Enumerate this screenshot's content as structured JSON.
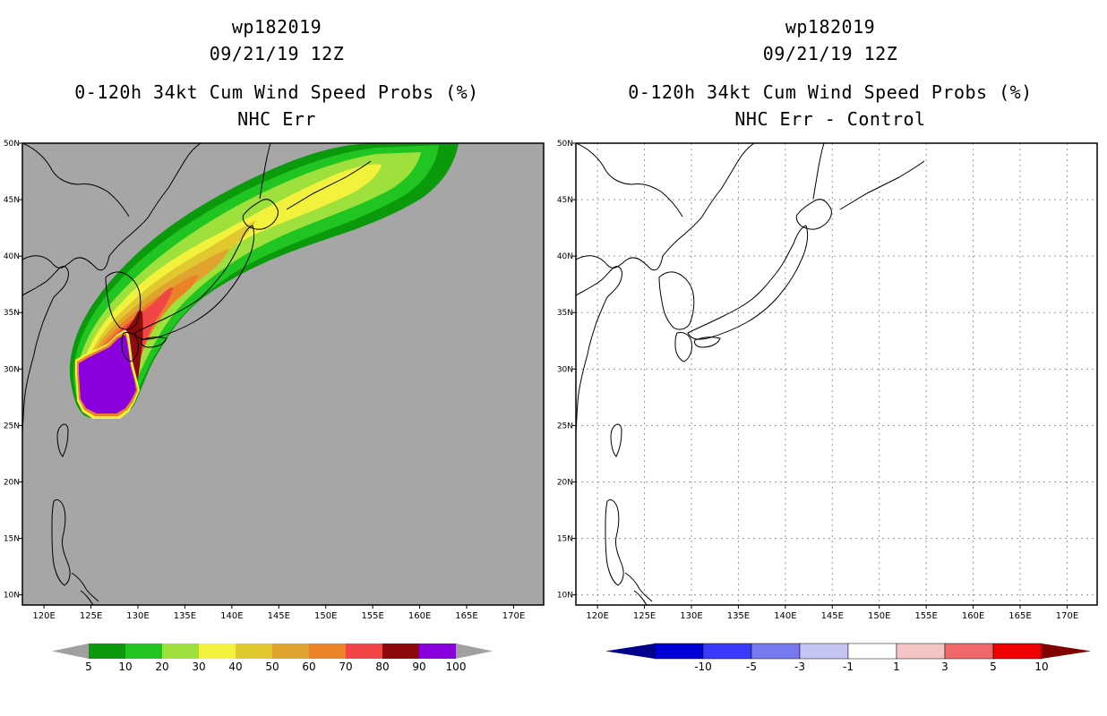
{
  "left": {
    "storm_id": "wp182019",
    "datetime": "09/21/19 12Z",
    "product": "0-120h 34kt Cum Wind Speed Probs (%)",
    "subtitle": "NHC Err",
    "background": "#a6a6a6",
    "colorbar": {
      "labels": [
        "5",
        "10",
        "20",
        "30",
        "40",
        "50",
        "60",
        "70",
        "80",
        "90",
        "100"
      ],
      "colors": [
        "#0b9a0b",
        "#21c521",
        "#9ee03c",
        "#f2f23c",
        "#e0c82e",
        "#e0a42e",
        "#ec8228",
        "#f04646",
        "#8c0a0a",
        "#8a00dc"
      ],
      "end_color": "#a0a0a0"
    }
  },
  "right": {
    "storm_id": "wp182019",
    "datetime": "09/21/19 12Z",
    "product": "0-120h 34kt Cum Wind Speed Probs (%)",
    "subtitle": "NHC Err - Control",
    "background": "#ffffff",
    "colorbar": {
      "labels": [
        "-10",
        "-5",
        "-3",
        "-1",
        "1",
        "3",
        "5",
        "10"
      ],
      "colors": [
        "#0000d8",
        "#3a3aff",
        "#7878ee",
        "#c4c4f6",
        "#ffffff",
        "#f6c4c4",
        "#f06868",
        "#f00000",
        "#800000"
      ],
      "end_left": "#00008c",
      "end_right": "#800000"
    }
  },
  "map": {
    "lon_ticks": [
      "120E",
      "125E",
      "130E",
      "135E",
      "140E",
      "145E",
      "150E",
      "155E",
      "160E",
      "165E",
      "170E"
    ],
    "lat_ticks": [
      "50N",
      "45N",
      "40N",
      "35N",
      "30N",
      "25N",
      "20N",
      "15N",
      "10N"
    ],
    "lon_values": [
      120,
      125,
      130,
      135,
      140,
      145,
      150,
      155,
      160,
      165,
      170
    ],
    "lat_values": [
      50,
      45,
      40,
      35,
      30,
      25,
      20,
      15,
      10
    ],
    "lon_range": [
      117.7,
      173.2
    ],
    "lat_range": [
      9.1,
      50.0
    ]
  }
}
